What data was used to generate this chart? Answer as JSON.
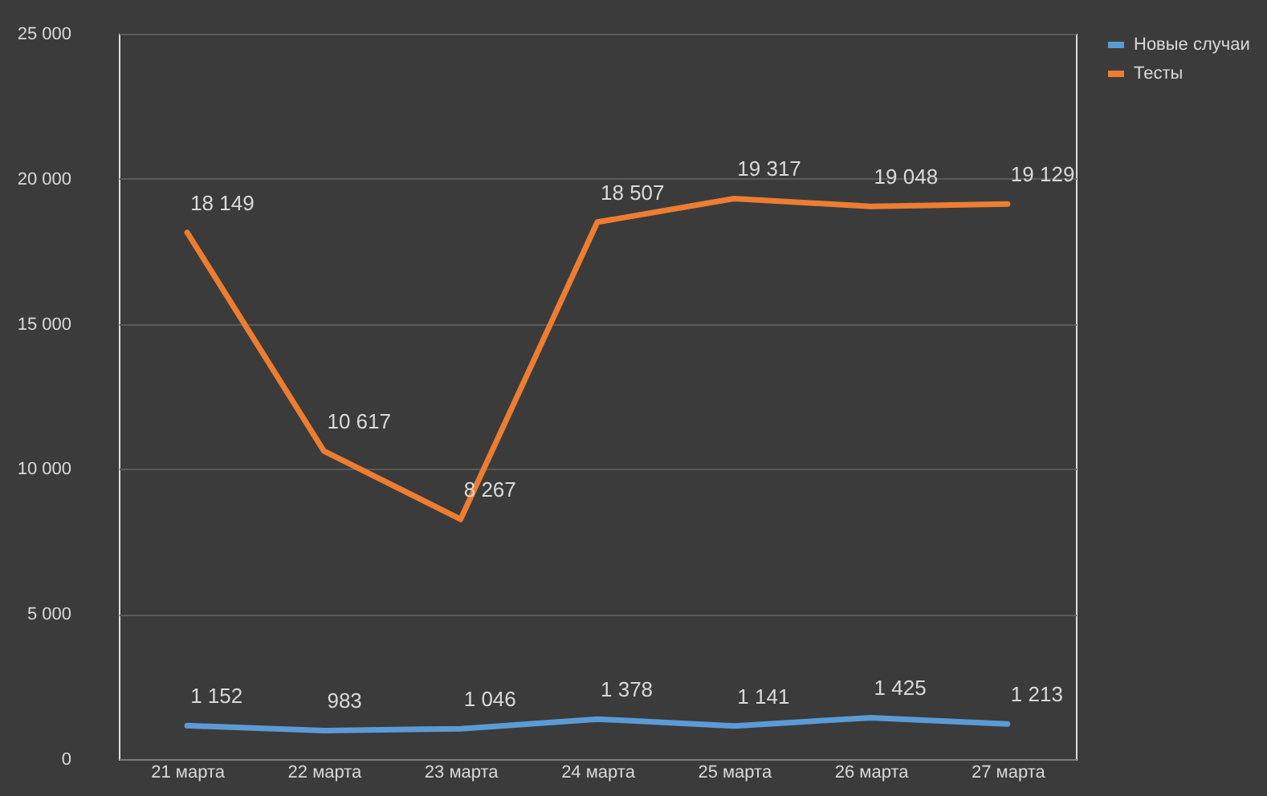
{
  "chart_data": {
    "type": "line",
    "categories": [
      "21 марта",
      "22 марта",
      "23 марта",
      "24 марта",
      "25 марта",
      "26 марта",
      "27 марта"
    ],
    "series": [
      {
        "name": "Новые случаи",
        "color": "#5b9bd5",
        "values": [
          1152,
          983,
          1046,
          1378,
          1141,
          1425,
          1213
        ],
        "value_labels": [
          "1 152",
          "983",
          "1 046",
          "1 378",
          "1 141",
          "1 425",
          "1 213"
        ]
      },
      {
        "name": "Тесты",
        "color": "#ed7d31",
        "values": [
          18149,
          10617,
          8267,
          18507,
          19317,
          19048,
          19129
        ],
        "value_labels": [
          "18 149",
          "10 617",
          "8 267",
          "18 507",
          "19 317",
          "19 048",
          "19 129"
        ]
      }
    ],
    "ylim": [
      0,
      25000
    ],
    "yticks": [
      0,
      {
        "value": 5000,
        "label": "5 000"
      },
      {
        "value": 10000,
        "label": "10 000"
      },
      {
        "value": 15000,
        "label": "15 000"
      },
      {
        "value": 20000,
        "label": "20 000"
      },
      {
        "value": 25000,
        "label": "25 000"
      }
    ],
    "grid": "y",
    "legend": "right",
    "marker": "none",
    "line_style": "solid"
  }
}
